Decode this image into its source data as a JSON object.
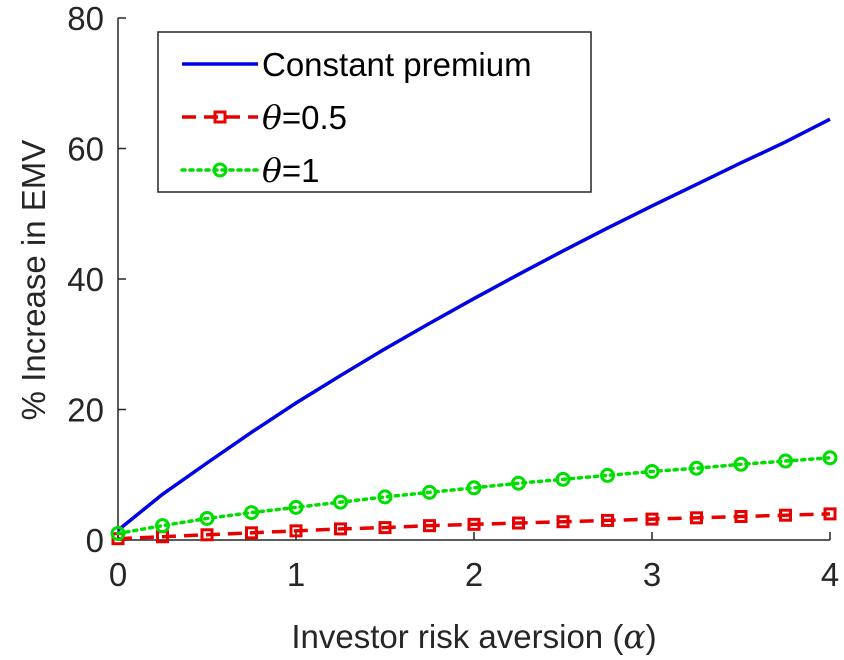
{
  "chart_data": {
    "type": "line",
    "xlabel": "Investor risk aversion (",
    "xlabel_symbol": "α",
    "xlabel_close": ")",
    "ylabel": "% Increase in EMV",
    "xlim": [
      0,
      4
    ],
    "ylim": [
      0,
      80
    ],
    "xticks": [
      "0",
      "1",
      "2",
      "3",
      "4"
    ],
    "yticks": [
      "0",
      "20",
      "40",
      "60",
      "80"
    ],
    "grid": false,
    "legend_position": "top-left",
    "series": [
      {
        "name": "Constant premium",
        "name_parts": [
          "Constant premium"
        ],
        "color": "#0000e6",
        "line_style": "solid",
        "marker": "none",
        "x": [
          0,
          0.25,
          0.5,
          0.75,
          1,
          1.25,
          1.5,
          1.75,
          2,
          2.25,
          2.5,
          2.75,
          3,
          3.25,
          3.5,
          3.75,
          4
        ],
        "y": [
          1.5,
          7.0,
          11.8,
          16.5,
          21.0,
          25.2,
          29.3,
          33.2,
          37.0,
          40.7,
          44.3,
          47.8,
          51.2,
          54.5,
          57.8,
          61.0,
          64.5
        ]
      },
      {
        "name": "θ=0.5",
        "name_parts": [
          "θ",
          "=0.5"
        ],
        "color": "#e60000",
        "line_style": "dashed",
        "marker": "square",
        "x": [
          0,
          0.25,
          0.5,
          0.75,
          1,
          1.25,
          1.5,
          1.75,
          2,
          2.25,
          2.5,
          2.75,
          3,
          3.25,
          3.5,
          3.75,
          4
        ],
        "y": [
          0.2,
          0.5,
          0.8,
          1.1,
          1.4,
          1.7,
          1.9,
          2.2,
          2.4,
          2.6,
          2.8,
          3.0,
          3.2,
          3.4,
          3.6,
          3.8,
          4.0
        ]
      },
      {
        "name": "θ=1",
        "name_parts": [
          "θ",
          "=1"
        ],
        "color": "#00dd00",
        "line_style": "dotted",
        "marker": "circle",
        "x": [
          0,
          0.25,
          0.5,
          0.75,
          1,
          1.25,
          1.5,
          1.75,
          2,
          2.25,
          2.5,
          2.75,
          3,
          3.25,
          3.5,
          3.75,
          4
        ],
        "y": [
          1.0,
          2.2,
          3.3,
          4.2,
          5.0,
          5.8,
          6.6,
          7.3,
          8.0,
          8.7,
          9.3,
          9.9,
          10.5,
          11.0,
          11.6,
          12.1,
          12.6
        ]
      }
    ]
  }
}
